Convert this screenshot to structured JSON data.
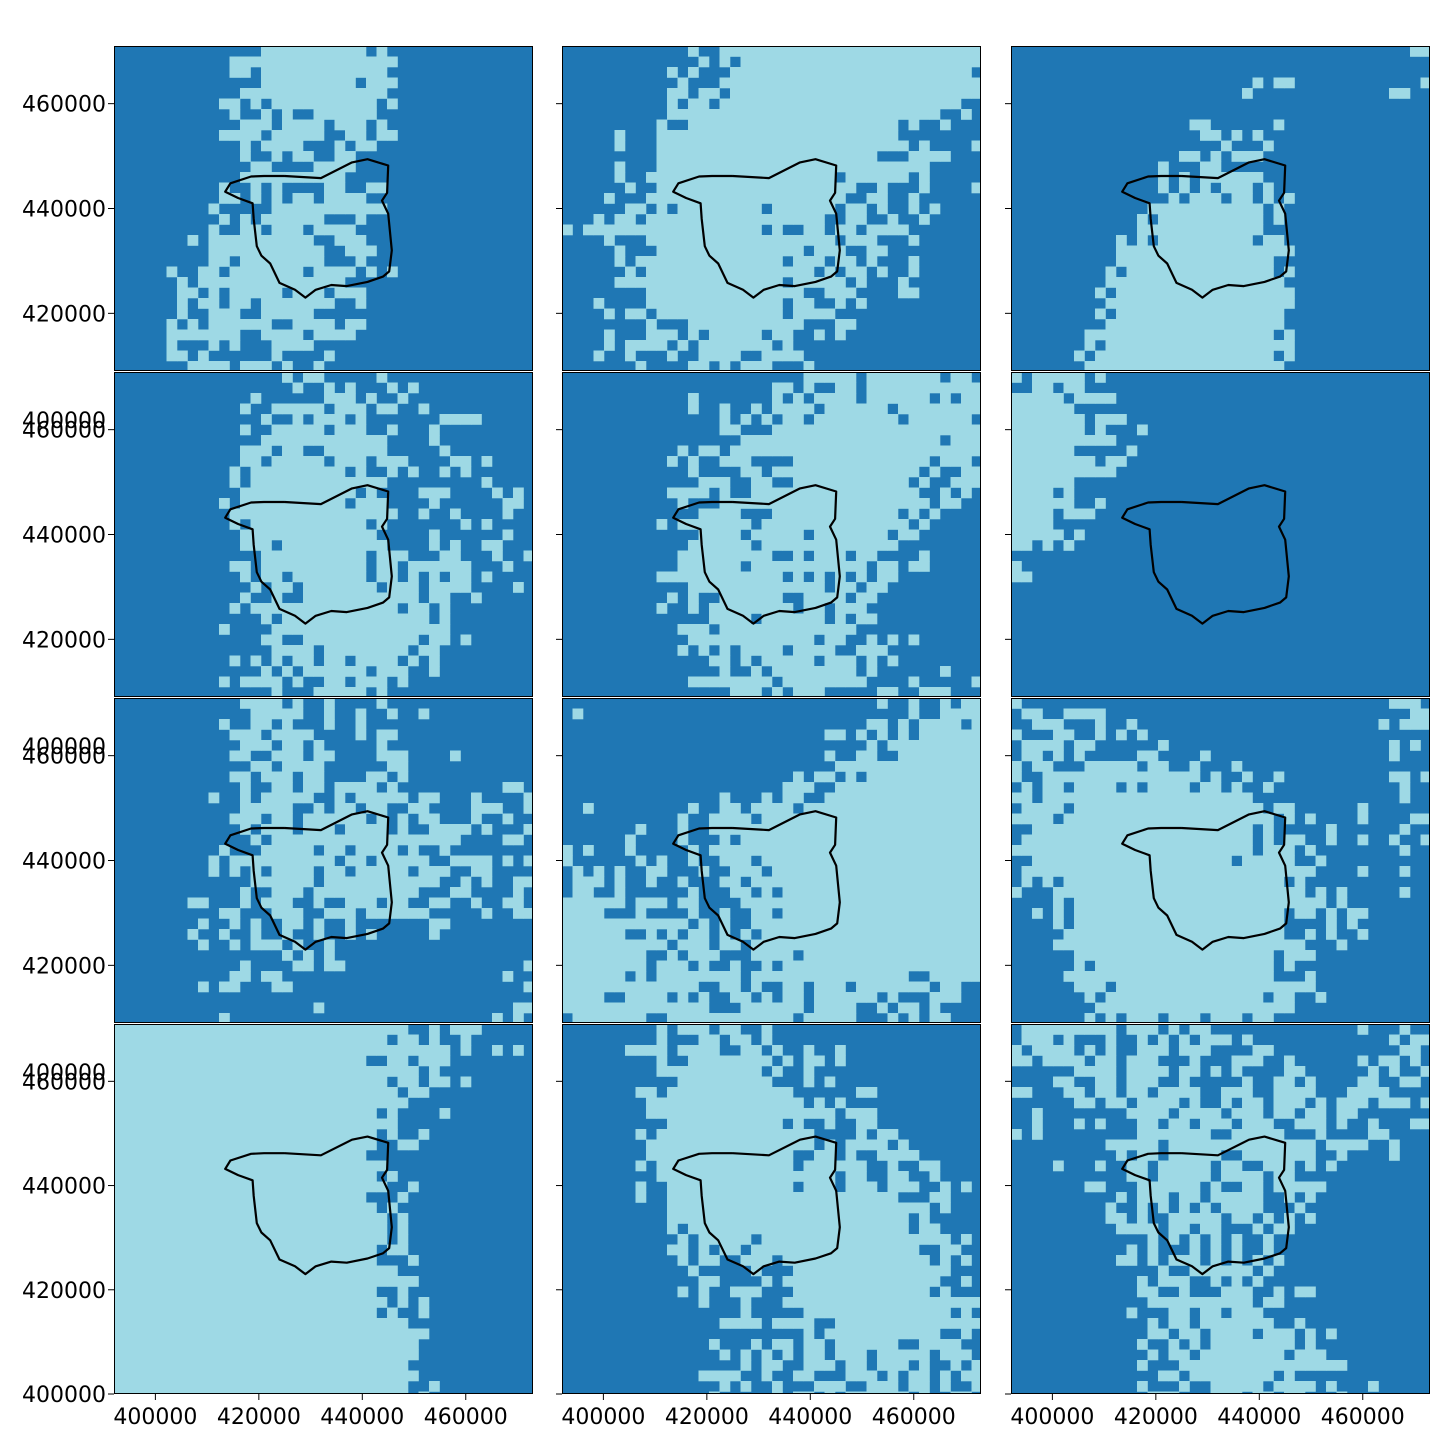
{
  "figure": {
    "title": "",
    "rows": 4,
    "cols": 3,
    "colors": {
      "class_dark": "#1f77b4",
      "class_light": "#9ed9e5",
      "boundary": "#000000",
      "background": "#ffffff"
    }
  },
  "chart_data": {
    "type": "heatmap",
    "xlabel": "",
    "ylabel": "",
    "x_range": [
      392000,
      473000
    ],
    "y_range": [
      409000,
      471000
    ],
    "last_row_y_range": [
      400000,
      471000
    ],
    "x_ticks": [
      400000,
      420000,
      440000,
      460000
    ],
    "x_tick_labels": [
      "400000",
      "420000",
      "440000",
      "460000"
    ],
    "y_ticks": [
      420000,
      440000,
      460000
    ],
    "y_tick_labels": [
      "420000",
      "440000",
      "460000"
    ],
    "bottom_y_tick": 400000,
    "bottom_y_tick_label": "400000",
    "grid": false,
    "legend": "none",
    "boundary_outline": [
      [
        425000,
        446200
      ],
      [
        432000,
        445800
      ],
      [
        438000,
        448800
      ],
      [
        441000,
        449400
      ],
      [
        445000,
        448200
      ],
      [
        444800,
        443000
      ],
      [
        443800,
        441500
      ],
      [
        445000,
        439000
      ],
      [
        445700,
        432000
      ],
      [
        445200,
        428000
      ],
      [
        444000,
        427000
      ],
      [
        441000,
        426000
      ],
      [
        437000,
        425200
      ],
      [
        434000,
        425400
      ],
      [
        431000,
        424500
      ],
      [
        429000,
        423000
      ],
      [
        427000,
        424500
      ],
      [
        424000,
        425800
      ],
      [
        422200,
        429500
      ],
      [
        420500,
        431000
      ],
      [
        419600,
        432800
      ],
      [
        419000,
        438000
      ],
      [
        418800,
        441000
      ],
      [
        416000,
        442000
      ],
      [
        413500,
        443200
      ],
      [
        414500,
        444800
      ],
      [
        418500,
        446100
      ],
      [
        421000,
        446200
      ],
      [
        425000,
        446200
      ]
    ],
    "panels": [
      {
        "boundary": [
          [
            392000,
            445000
          ],
          [
            435000,
            470000
          ],
          [
            428000,
            448000
          ],
          [
            451000,
            436000
          ],
          [
            418000,
            432000
          ],
          [
            470000,
            465000
          ]
        ],
        "light_fraction": 0.28
      },
      {
        "boundary": [
          [
            412000,
            470000
          ],
          [
            424000,
            448000
          ],
          [
            432000,
            440000
          ],
          [
            428000,
            424000
          ],
          [
            420000,
            410000
          ],
          [
            472000,
            458000
          ]
        ],
        "light_fraction": 0.55
      },
      {
        "boundary": [
          [
            392000,
            430000
          ],
          [
            442000,
            426000
          ],
          [
            456000,
            418000
          ],
          [
            470000,
            414000
          ],
          [
            420000,
            412000
          ],
          [
            452000,
            430000
          ]
        ],
        "light_fraction": 0.25
      },
      {
        "boundary": [
          [
            392000,
            455000
          ],
          [
            420000,
            450000
          ],
          [
            448000,
            440000
          ],
          [
            440000,
            425000
          ],
          [
            452000,
            420000
          ],
          [
            470000,
            412000
          ]
        ],
        "light_fraction": 0.35
      },
      {
        "boundary": [
          [
            392000,
            428000
          ],
          [
            418000,
            434000
          ],
          [
            432000,
            440000
          ],
          [
            452000,
            442000
          ],
          [
            460000,
            450000
          ],
          [
            472000,
            436000
          ]
        ],
        "light_fraction": 0.45
      },
      {
        "boundary": [
          [
            420000,
            416000
          ],
          [
            438000,
            414000
          ],
          [
            452000,
            415000
          ],
          [
            462000,
            420000
          ],
          [
            472000,
            412000
          ],
          [
            392000,
            412000
          ]
        ],
        "light_fraction": 0.1
      },
      {
        "boundary": [
          [
            392000,
            470000
          ],
          [
            420000,
            466000
          ],
          [
            440000,
            460000
          ],
          [
            450000,
            445000
          ],
          [
            448000,
            430000
          ],
          [
            450000,
            418000
          ]
        ],
        "light_fraction": 0.28
      },
      {
        "boundary": [
          [
            430000,
            470000
          ],
          [
            428000,
            450000
          ],
          [
            420000,
            430000
          ],
          [
            410000,
            425000
          ],
          [
            392000,
            418000
          ],
          [
            472000,
            405000
          ]
        ],
        "light_fraction": 0.6
      },
      {
        "boundary": [
          [
            436000,
            470000
          ],
          [
            434000,
            450000
          ],
          [
            432000,
            440000
          ],
          [
            430000,
            428000
          ],
          [
            418000,
            424000
          ],
          [
            392000,
            418000
          ]
        ],
        "light_fraction": 0.5
      },
      {
        "boundary": [
          [
            392000,
            470000
          ],
          [
            405000,
            460000
          ],
          [
            410000,
            440000
          ],
          [
            414000,
            420000
          ],
          [
            420000,
            400000
          ],
          [
            392000,
            400000
          ]
        ],
        "light_fraction": 0.7
      },
      {
        "boundary": [
          [
            392000,
            440000
          ],
          [
            420000,
            444000
          ],
          [
            440000,
            446000
          ],
          [
            460000,
            440000
          ],
          [
            450000,
            425000
          ],
          [
            430000,
            418000
          ]
        ],
        "light_fraction": 0.45
      },
      {
        "boundary": [
          [
            450000,
            470000
          ],
          [
            447000,
            445000
          ],
          [
            445000,
            428000
          ],
          [
            438000,
            418000
          ],
          [
            436000,
            400000
          ],
          [
            470000,
            430000
          ]
        ],
        "light_fraction": 0.35
      }
    ]
  }
}
